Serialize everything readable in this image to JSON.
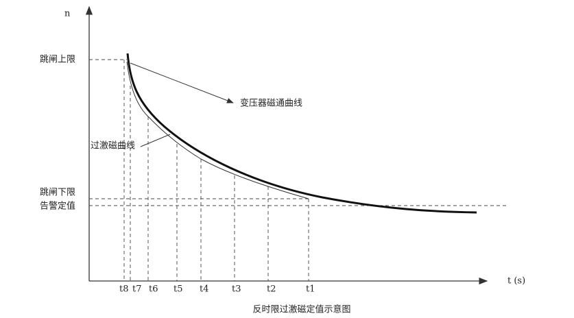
{
  "axes": {
    "y_label": "n",
    "x_label": "t (s)"
  },
  "levels": [
    "跳闸上限",
    "跳闸下限",
    "告警定值"
  ],
  "curves": [
    "变压器磁通曲线",
    "过激磁曲线"
  ],
  "time_marks": [
    "t8",
    "t7",
    "t6",
    "t5",
    "t4",
    "t3",
    "t2",
    "t1"
  ],
  "caption": "反时限过激磁定值示意图"
}
